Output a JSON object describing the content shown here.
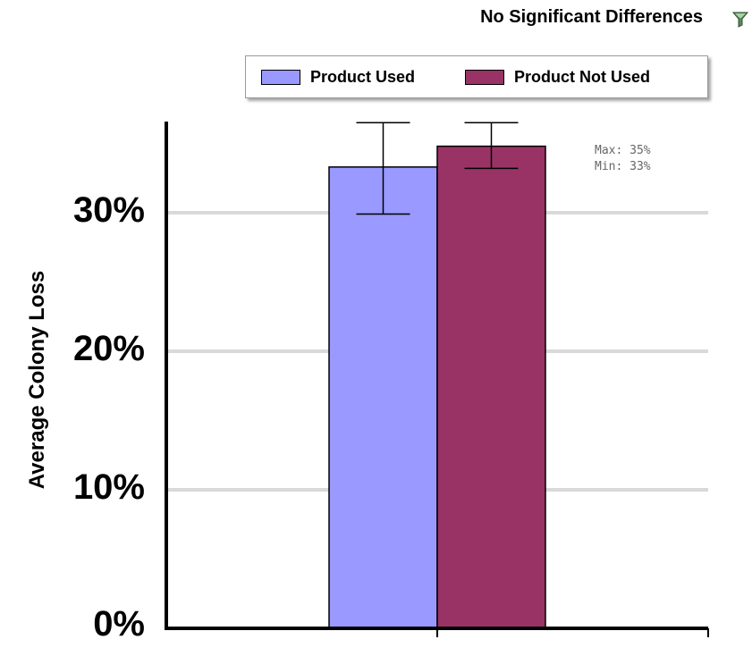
{
  "header": {
    "status_text": "No Significant Differences",
    "status_icon": "filter-funnel-icon"
  },
  "legend": {
    "items": [
      {
        "label": "Product Used",
        "color": "#9999ff"
      },
      {
        "label": "Product Not Used",
        "color": "#993366"
      }
    ]
  },
  "stats": {
    "max_text": "Max: 35%",
    "min_text": "Min: 33%"
  },
  "chart_data": {
    "type": "bar",
    "categories": [
      ""
    ],
    "series": [
      {
        "name": "Product Used",
        "values": [
          33.3
        ],
        "error_high": [
          36.5
        ],
        "error_low": [
          29.9
        ],
        "color": "#9999ff"
      },
      {
        "name": "Product Not Used",
        "values": [
          34.8
        ],
        "error_high": [
          36.5
        ],
        "error_low": [
          33.2
        ],
        "color": "#993366"
      }
    ],
    "title": "",
    "xlabel": "",
    "ylabel": "Average Colony Loss",
    "ylim": [
      0,
      35
    ],
    "yticks": [
      0,
      10,
      20,
      30
    ],
    "ytick_labels": [
      "0%",
      "10%",
      "20%",
      "30%"
    ],
    "grid": true,
    "legend_placement": "top"
  }
}
